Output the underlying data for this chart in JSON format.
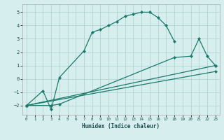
{
  "bg_color": "#d6eeee",
  "grid_color": "#aacccc",
  "line_color": "#1a7a6a",
  "line1_x": [
    0,
    2,
    3,
    4,
    7,
    8,
    9,
    10,
    11,
    12,
    13,
    14,
    15,
    16,
    17,
    18
  ],
  "line1_y": [
    -2.0,
    -0.9,
    -2.3,
    0.1,
    2.1,
    3.5,
    3.7,
    4.0,
    4.3,
    4.7,
    4.85,
    5.0,
    5.0,
    4.6,
    4.0,
    2.8
  ],
  "line2_x": [
    0,
    3,
    4,
    18,
    20,
    21,
    22,
    23
  ],
  "line2_y": [
    -2.0,
    -2.0,
    -1.9,
    1.6,
    1.7,
    3.0,
    1.7,
    1.0
  ],
  "line3_x": [
    0,
    23
  ],
  "line3_y": [
    -2.0,
    1.0
  ],
  "line4_x": [
    0,
    23
  ],
  "line4_y": [
    -2.0,
    0.55
  ],
  "xlim": [
    -0.5,
    23.5
  ],
  "ylim": [
    -2.7,
    5.6
  ],
  "yticks": [
    -2,
    -1,
    0,
    1,
    2,
    3,
    4,
    5
  ],
  "xticks": [
    0,
    1,
    2,
    3,
    4,
    5,
    6,
    7,
    8,
    9,
    10,
    11,
    12,
    13,
    14,
    15,
    16,
    17,
    18,
    19,
    20,
    21,
    22,
    23
  ],
  "xlabel": "Humidex (Indice chaleur)",
  "marker_size": 2.2,
  "line_width": 0.9
}
